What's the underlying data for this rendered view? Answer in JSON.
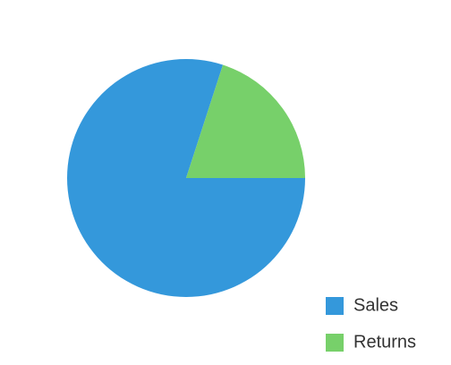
{
  "chart_data": {
    "type": "pie",
    "categories": [
      "Sales",
      "Returns"
    ],
    "values": [
      80,
      20
    ],
    "colors": [
      "#3498db",
      "#77d06a"
    ],
    "legend": "bottom-right"
  }
}
